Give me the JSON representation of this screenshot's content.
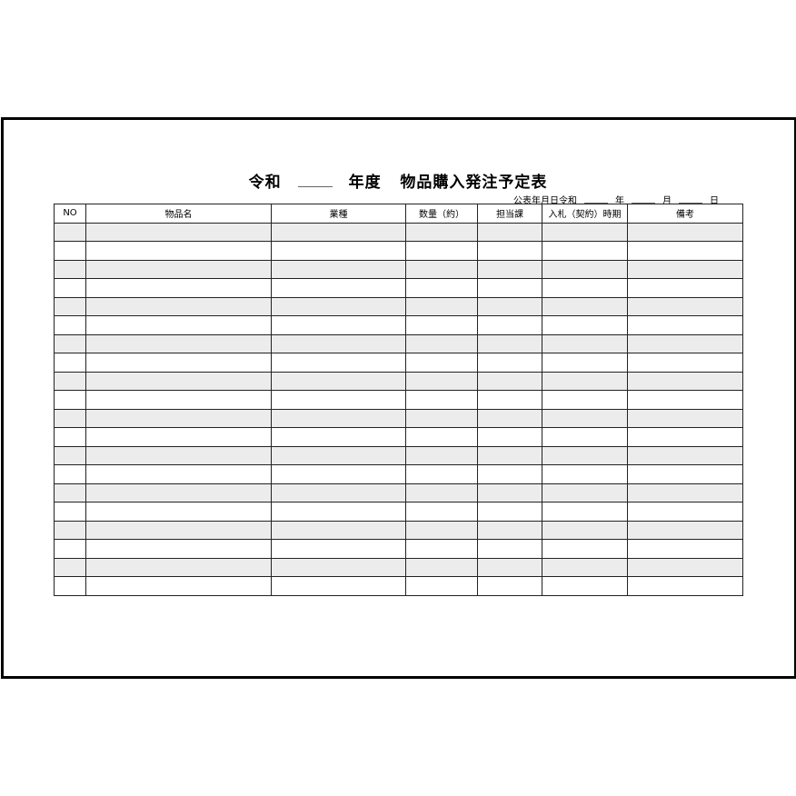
{
  "title": {
    "era": "令和",
    "suffix": "年度",
    "name": "物品購入発注予定表"
  },
  "date_line": {
    "label": "公表年月日令和",
    "year": "年",
    "month": "月",
    "day": "日"
  },
  "table": {
    "headers": [
      "NO",
      "物品名",
      "業種",
      "数量（約）",
      "担当課",
      "入札（契約）時期",
      "備考"
    ],
    "row_count": 20
  },
  "colors": {
    "stripe": "#ececec",
    "line": "#222222"
  }
}
